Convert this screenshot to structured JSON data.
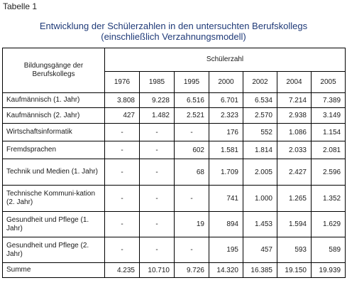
{
  "caption": "Tabelle 1",
  "title_line1": "Entwicklung der Schülerzahlen  in den untersuchten  Berufskollegs",
  "title_line2": "(einschließlich Verzahnungsmodell)",
  "table": {
    "row_header": "Bildungsgänge der Berufskollegs",
    "group_header": "Schülerzahl",
    "years": [
      "1976",
      "1985",
      "1995",
      "2000",
      "2002",
      "2004",
      "2005"
    ],
    "rows": [
      {
        "label": "Kaufmännisch (1. Jahr)",
        "values": [
          "3.808",
          "9.228",
          "6.516",
          "6.701",
          "6.534",
          "7.214",
          "7.389"
        ]
      },
      {
        "label": "Kaufmännisch (2. Jahr)",
        "values": [
          "427",
          "1.482",
          "2.521",
          "2.323",
          "2.570",
          "2.938",
          "3.149"
        ]
      },
      {
        "label": "Wirtschaftsinformatik",
        "values": [
          "-",
          "-",
          "-",
          "176",
          "552",
          "1.086",
          "1.154"
        ]
      },
      {
        "label": "Fremdsprachen",
        "values": [
          "-",
          "-",
          "602",
          "1.581",
          "1.814",
          "2.033",
          "2.081"
        ]
      },
      {
        "label": "Technik und Medien (1. Jahr)",
        "values": [
          "-",
          "-",
          "68",
          "1.709",
          "2.005",
          "2.427",
          "2.596"
        ]
      },
      {
        "label": "Technische Kommuni-kation (2. Jahr)",
        "values": [
          "-",
          "-",
          "-",
          "741",
          "1.000",
          "1.265",
          "1.352"
        ]
      },
      {
        "label": "Gesundheit und Pflege (1. Jahr)",
        "values": [
          "-",
          "-",
          "19",
          "894",
          "1.453",
          "1.594",
          "1.629"
        ]
      },
      {
        "label": "Gesundheit und Pflege (2. Jahr)",
        "values": [
          "-",
          "-",
          "-",
          "195",
          "457",
          "593",
          "589"
        ]
      },
      {
        "label": "Summe",
        "values": [
          "4.235",
          "10.710",
          "9.726",
          "14.320",
          "16.385",
          "19.150",
          "19.939"
        ]
      }
    ]
  }
}
